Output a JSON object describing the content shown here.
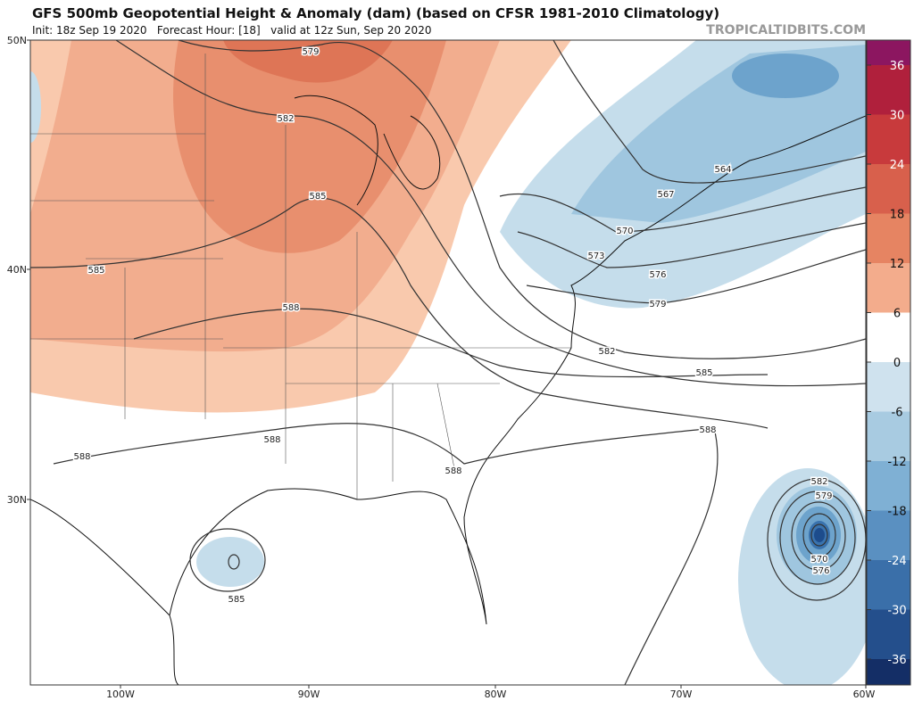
{
  "header": {
    "title": "GFS 500mb Geopotential Height & Anomaly (dam) (based on CFSR 1981-2010 Climatology)",
    "subtitle": "Init: 18z Sep 19 2020   Forecast Hour: [18]   valid at 12z Sun, Sep 20 2020",
    "site": "TROPICALTIDBITS.COM"
  },
  "map": {
    "lat_labels": [
      "50N",
      "40N",
      "30N"
    ],
    "lon_labels": [
      "100W",
      "90W",
      "80W",
      "70W",
      "60W"
    ],
    "contour_labels": [
      "579",
      "582",
      "585",
      "585",
      "588",
      "588",
      "588",
      "588",
      "564",
      "567",
      "570",
      "573",
      "576",
      "579",
      "582",
      "585",
      "588",
      "582",
      "579",
      "570",
      "576",
      "585"
    ]
  },
  "colorbar": {
    "ticks": [
      36,
      30,
      24,
      18,
      12,
      6,
      0,
      -6,
      -12,
      -18,
      -24,
      -30,
      -36
    ],
    "colors": [
      "#8c1660",
      "#b0203c",
      "#c83a3c",
      "#d8604c",
      "#e68462",
      "#f3ac8c",
      "#ffffff",
      "#cfe2ee",
      "#a8cbe1",
      "#7fb0d4",
      "#5a90c1",
      "#3a6fa9",
      "#244f8c",
      "#142e66"
    ]
  }
}
